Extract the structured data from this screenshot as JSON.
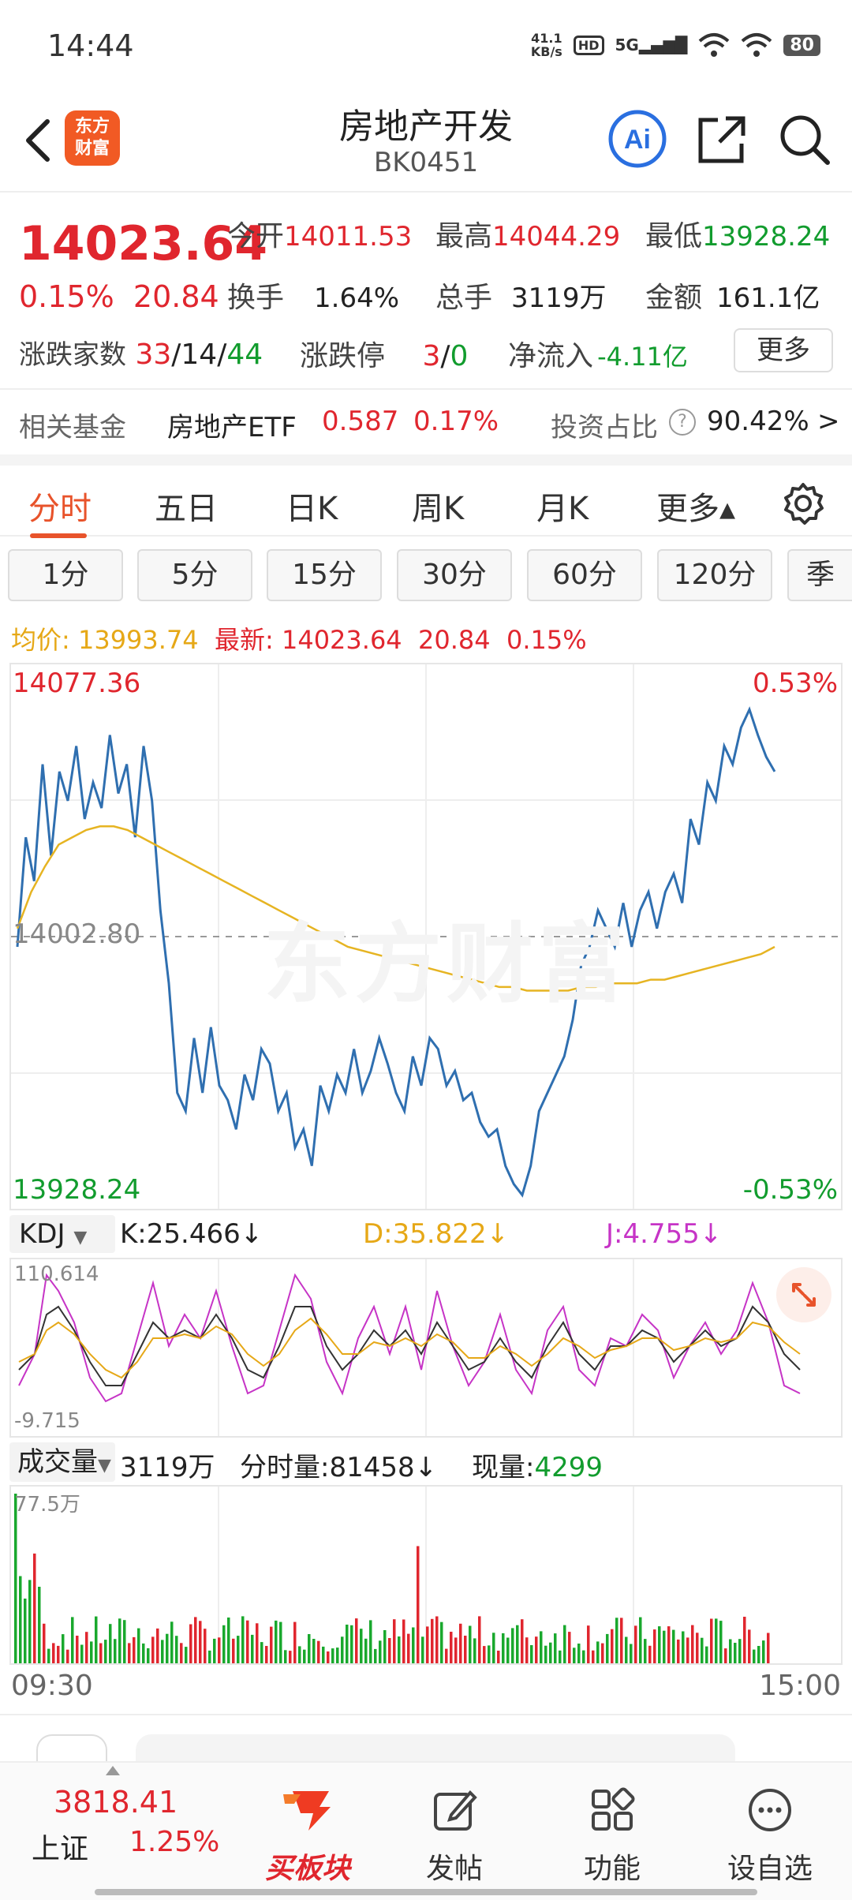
{
  "status_bar": {
    "time": "14:44",
    "speed_top": "41.1",
    "speed_bottom": "KB/s",
    "hd": "HD",
    "net": "5G",
    "battery": "80"
  },
  "header": {
    "title": "房地产开发",
    "code": "BK0451",
    "logo_text_1": "东方",
    "logo_text_2": "财富",
    "ai_label": "Ai"
  },
  "quote": {
    "price": "14023.64",
    "change_pct": "0.15%",
    "change": "20.84",
    "open_label": "今开",
    "open": "14011.53",
    "high_label": "最高",
    "high": "14044.29",
    "low_label": "最低",
    "low": "13928.24",
    "turnover_label": "换手",
    "turnover": "1.64%",
    "volume_label": "总手",
    "volume": "3119万",
    "amount_label": "金额",
    "amount": "161.1亿",
    "breadth_label": "涨跌家数",
    "up": "33",
    "flat": "14",
    "down": "44",
    "sep": "/",
    "limit_label": "涨跌停",
    "limit_up": "3",
    "limit_down": "0",
    "inflow_label": "净流入",
    "inflow": "-4.11亿",
    "more_label": "更多"
  },
  "fund": {
    "label": "相关基金",
    "name": "房地产ETF",
    "price": "0.587",
    "pct": "0.17%",
    "ratio_label": "投资占比",
    "ratio": "90.42%",
    "help": "?",
    "arrow": ">"
  },
  "tabs": [
    "分时",
    "五日",
    "日K",
    "周K",
    "月K",
    "更多▴"
  ],
  "periods": [
    "1分",
    "5分",
    "15分",
    "30分",
    "60分",
    "120分",
    "季"
  ],
  "avg_line": {
    "avg_label": "均价:",
    "avg": "13993.74",
    "latest_label": "最新:",
    "latest": "14023.64",
    "chg": "20.84",
    "pct": "0.15%"
  },
  "price_chart": {
    "top_label": "14077.36",
    "top_pct": "0.53%",
    "mid_label": "14002.80",
    "bottom_label": "13928.24",
    "bottom_pct": "-0.53%",
    "watermark": "东方财富"
  },
  "kdj": {
    "selector": "KDJ",
    "k": "K:25.466↓",
    "d": "D:35.822↓",
    "j": "J:4.755↓",
    "top": "110.614",
    "bottom": "-9.715"
  },
  "volume": {
    "selector": "成交量",
    "total": "3119万",
    "tick_label": "分时量:",
    "tick": "81458↓",
    "now_label": "现量:",
    "now": "4299",
    "max": "77.5万"
  },
  "time_axis": {
    "start": "09:30",
    "end": "15:00"
  },
  "bottom_bar": {
    "index_value": "3818.41",
    "index_name": "上证",
    "index_pct": "1.25%",
    "buy_label": "买板块",
    "post_label": "发帖",
    "func_label": "功能",
    "watch_label": "设自选"
  },
  "chart_data": {
    "type": "line",
    "ylim": [
      13928.24,
      14077.36
    ],
    "y_reference": 14002.8,
    "series": [
      {
        "values": [
          14000,
          14030,
          14018,
          14050,
          14025,
          14048,
          14040,
          14055,
          14035,
          14045,
          14038,
          14058,
          14042,
          14050,
          14030,
          14055,
          14040,
          14010,
          13990,
          13960,
          13955,
          13975,
          13960,
          13978,
          13962,
          13958,
          13950,
          13965,
          13958,
          13972,
          13968,
          13955,
          13960,
          13945,
          13950,
          13940,
          13962,
          13955,
          13965,
          13960,
          13972,
          13960,
          13966,
          13975,
          13968,
          13960,
          13955,
          13970,
          13962,
          13975,
          13972,
          13962,
          13966,
          13958,
          13960,
          13952,
          13948,
          13950,
          13940,
          13935,
          13932,
          13940,
          13955,
          13960,
          13965,
          13970,
          13980,
          13995,
          14000,
          14010,
          14005,
          14000,
          14012,
          14000,
          14010,
          14015,
          14005,
          14015,
          14020,
          14012,
          14035,
          14028,
          14045,
          14040,
          14055,
          14050,
          14060,
          14065,
          14058,
          14052,
          14048
        ]
      },
      {
        "values": [
          14005,
          14015,
          14022,
          14028,
          14030,
          14032,
          14033,
          14033,
          14032,
          14030,
          14028,
          14026,
          14024,
          14022,
          14020,
          14018,
          14016,
          14014,
          14012,
          14010,
          14008,
          14006,
          14004,
          14002,
          14000,
          13999,
          13998,
          13997,
          13996,
          13995,
          13994,
          13993,
          13992,
          13991,
          13990,
          13989,
          13989,
          13988,
          13988,
          13988,
          13988,
          13989,
          13989,
          13990,
          13990,
          13990,
          13991,
          13991,
          13992,
          13993,
          13994,
          13995,
          13996,
          13997,
          13998,
          14000
        ]
      }
    ]
  }
}
